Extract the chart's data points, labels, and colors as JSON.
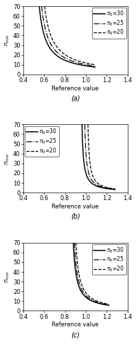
{
  "subplots": [
    {
      "label": "(a)",
      "xlim": [
        0.4,
        1.4
      ],
      "ylim": [
        0,
        70
      ],
      "xticks": [
        0.4,
        0.6,
        0.8,
        1.0,
        1.2,
        1.4
      ],
      "yticks": [
        0,
        10,
        20,
        30,
        40,
        50,
        60,
        70
      ],
      "curves": [
        {
          "asymp": 0.49,
          "scale": 4.5,
          "xmax": 1.09,
          "style": "solid",
          "label": "n$_0$=30"
        },
        {
          "asymp": 0.505,
          "scale": 5.0,
          "xmax": 1.09,
          "style": "dashdot",
          "label": "n$_0$=25"
        },
        {
          "asymp": 0.525,
          "scale": 5.6,
          "xmax": 1.09,
          "style": "dashed",
          "label": "n$_0$=20"
        }
      ],
      "legend_loc": "upper right"
    },
    {
      "label": "(b)",
      "xlim": [
        0.4,
        1.4
      ],
      "ylim": [
        0,
        70
      ],
      "xticks": [
        0.4,
        0.6,
        0.8,
        1.0,
        1.2,
        1.4
      ],
      "yticks": [
        0,
        10,
        20,
        30,
        40,
        50,
        60,
        70
      ],
      "curves": [
        {
          "asymp": 0.948,
          "scale": 1.05,
          "xmax": 1.28,
          "style": "solid",
          "label": "n$_0$=30"
        },
        {
          "asymp": 0.975,
          "scale": 1.05,
          "xmax": 1.28,
          "style": "dashdot",
          "label": "n$_0$=25"
        },
        {
          "asymp": 1.005,
          "scale": 1.05,
          "xmax": 1.28,
          "style": "dashed",
          "label": "n$_0$=20"
        }
      ],
      "legend_loc": "upper left"
    },
    {
      "label": "(c)",
      "xlim": [
        0.4,
        1.4
      ],
      "ylim": [
        0,
        70
      ],
      "xticks": [
        0.4,
        0.6,
        0.8,
        1.0,
        1.2,
        1.4
      ],
      "yticks": [
        0,
        10,
        20,
        30,
        40,
        50,
        60,
        70
      ],
      "curves": [
        {
          "asymp": 0.85,
          "scale": 2.1,
          "xmax": 1.22,
          "style": "solid",
          "label": "n$_0$=30"
        },
        {
          "asymp": 0.86,
          "scale": 2.2,
          "xmax": 1.22,
          "style": "dashdot",
          "label": "n$_0$=25"
        },
        {
          "asymp": 0.872,
          "scale": 2.35,
          "xmax": 1.22,
          "style": "dashed",
          "label": "n$_0$=20"
        }
      ],
      "legend_loc": "upper right"
    }
  ],
  "xlabel": "Reference value",
  "line_color": "black",
  "fontsize": 6
}
